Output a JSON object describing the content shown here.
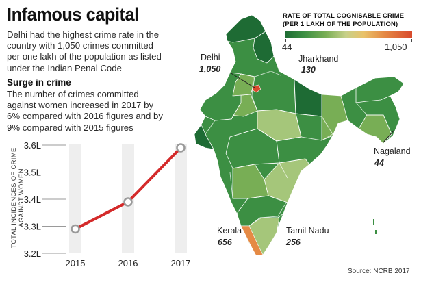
{
  "title": "Infamous capital",
  "intro": [
    "Delhi had the highest crime rate in the",
    "country with 1,050 crimes committed",
    "per one lakh of the population as listed",
    "under the Indian Penal Code"
  ],
  "surge": {
    "heading": "Surge in crime",
    "text": [
      "The number of crimes committed",
      "against women increased in 2017 by",
      "6% compared with 2016 figures and by",
      "9% compared with 2015 figures"
    ]
  },
  "chart_data": {
    "type": "line",
    "title": "Surge in crime",
    "xlabel": "",
    "ylabel": "TOTAL INCIDENCES OF CRIME AGAINST WOMEN",
    "ylabel_lines": [
      "TOTAL INCIDENCES OF CRIME",
      "AGAINST WOMEN"
    ],
    "x": [
      "2015",
      "2016",
      "2017"
    ],
    "values": [
      3.29,
      3.39,
      3.59
    ],
    "unit": "L",
    "yticks": [
      "3.2L",
      "3.3L",
      "3.4L",
      "3.5L",
      "3.6L"
    ],
    "ytick_values": [
      3.2,
      3.3,
      3.4,
      3.5,
      3.6
    ],
    "ylim": [
      3.2,
      3.6
    ],
    "line_color": "#d42a2a",
    "marker_color": "#9a9a9a",
    "column_color": "#eeeeee"
  },
  "map": {
    "legend_title": [
      "RATE OF TOTAL COGNISABLE CRIME",
      "(PER 1 LAKH OF THE POPULATION)"
    ],
    "legend_min": "44",
    "legend_max": "1,050",
    "labels": [
      {
        "name": "Delhi",
        "value": "1,050"
      },
      {
        "name": "Jharkhand",
        "value": "130"
      },
      {
        "name": "Nagaland",
        "value": "44"
      },
      {
        "name": "Kerala",
        "value": "656"
      },
      {
        "name": "Tamil Nadu",
        "value": "256"
      }
    ],
    "colors": {
      "dark": "#1e6b34",
      "mid": "#3c8f43",
      "light": "#78ae55",
      "pale": "#a5c67a",
      "orange": "#e58a45",
      "red": "#d8492c"
    }
  },
  "source": "Source: NCRB 2017"
}
